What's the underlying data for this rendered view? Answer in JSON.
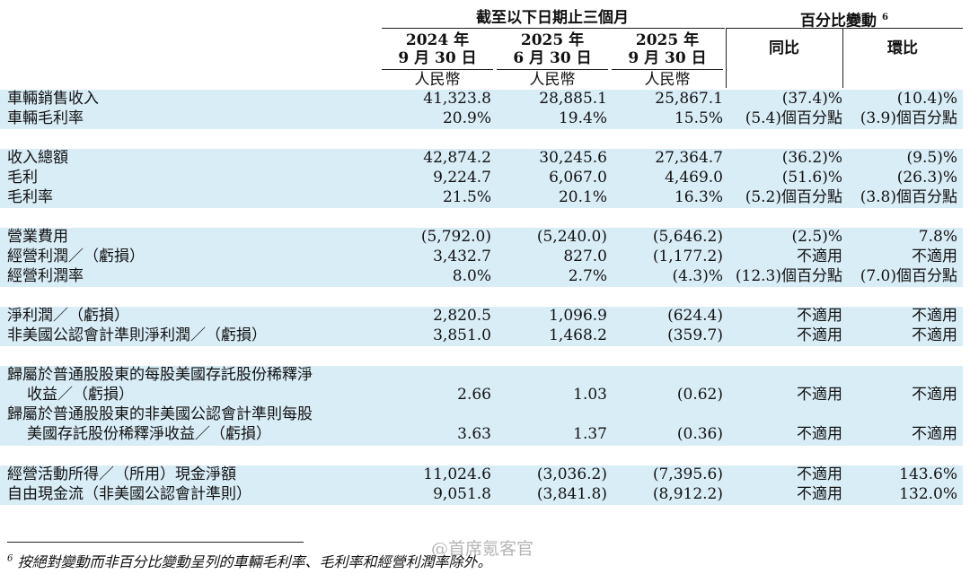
{
  "header": {
    "group_left": "截至以下日期止三個月",
    "group_right": "百分比變動",
    "group_right_sup": "6",
    "columns": [
      {
        "year": "2024 年",
        "date": "9 月 30 日",
        "unit": "人民幣"
      },
      {
        "year": "2025 年",
        "date": "6 月 30 日",
        "unit": "人民幣"
      },
      {
        "year": "2025 年",
        "date": "9 月 30 日",
        "unit": "人民幣"
      }
    ],
    "yoy": "同比",
    "qoq": "環比"
  },
  "rows": [
    {
      "label": [
        "車輛銷售收入"
      ],
      "v": [
        "41,323.8",
        "28,885.1",
        "25,867.1",
        "(37.4)%",
        "(10.4)%"
      ]
    },
    {
      "label": [
        "車輛毛利率"
      ],
      "v": [
        "20.9%",
        "19.4%",
        "15.5%",
        "(5.4)個百分點",
        "(3.9)個百分點"
      ]
    },
    {
      "label": [
        "收入總額"
      ],
      "v": [
        "42,874.2",
        "30,245.6",
        "27,364.7",
        "(36.2)%",
        "(9.5)%"
      ]
    },
    {
      "label": [
        "毛利"
      ],
      "v": [
        "9,224.7",
        "6,067.0",
        "4,469.0",
        "(51.6)%",
        "(26.3)%"
      ]
    },
    {
      "label": [
        "毛利率"
      ],
      "v": [
        "21.5%",
        "20.1%",
        "16.3%",
        "(5.2)個百分點",
        "(3.8)個百分點"
      ]
    },
    {
      "label": [
        "營業費用"
      ],
      "v": [
        "(5,792.0)",
        "(5,240.0)",
        "(5,646.2)",
        "(2.5)%",
        "7.8%"
      ]
    },
    {
      "label": [
        "經營利潤／（虧損）"
      ],
      "v": [
        "3,432.7",
        "827.0",
        "(1,177.2)",
        "不適用",
        "不適用"
      ]
    },
    {
      "label": [
        "經營利潤率"
      ],
      "v": [
        "8.0%",
        "2.7%",
        "(4.3)%",
        "(12.3)個百分點",
        "(7.0)個百分點"
      ]
    },
    {
      "label": [
        "淨利潤／（虧損）"
      ],
      "v": [
        "2,820.5",
        "1,096.9",
        "(624.4)",
        "不適用",
        "不適用"
      ]
    },
    {
      "label": [
        "非美國公認會計準則淨利潤／（虧損）"
      ],
      "v": [
        "3,851.0",
        "1,468.2",
        "(359.7)",
        "不適用",
        "不適用"
      ]
    },
    {
      "label": [
        "歸屬於普通股股東的每股美國存託股份稀釋淨",
        "收益／（虧損）"
      ],
      "v": [
        "2.66",
        "1.03",
        "(0.62)",
        "不適用",
        "不適用"
      ]
    },
    {
      "label": [
        "歸屬於普通股股東的非美國公認會計準則每股",
        "美國存託股份稀釋淨收益／（虧損）"
      ],
      "v": [
        "3.63",
        "1.37",
        "(0.36)",
        "不適用",
        "不適用"
      ]
    },
    {
      "label": [
        "經營活動所得／（所用）現金淨額"
      ],
      "v": [
        "11,024.6",
        "(3,036.2)",
        "(7,395.6)",
        "不適用",
        "143.6%"
      ]
    },
    {
      "label": [
        "自由現金流（非美國公認會計準則）"
      ],
      "v": [
        "9,051.8",
        "(3,841.8)",
        "(8,912.2)",
        "不適用",
        "132.0%"
      ]
    }
  ],
  "footnote": {
    "sup": "6",
    "text": "按絕對變動而非百分比變動呈列的車輛毛利率、毛利率和經營利潤率除外。"
  },
  "watermark": "@首席氪客官",
  "colors": {
    "band": "#d9edf7",
    "text": "#111111"
  }
}
